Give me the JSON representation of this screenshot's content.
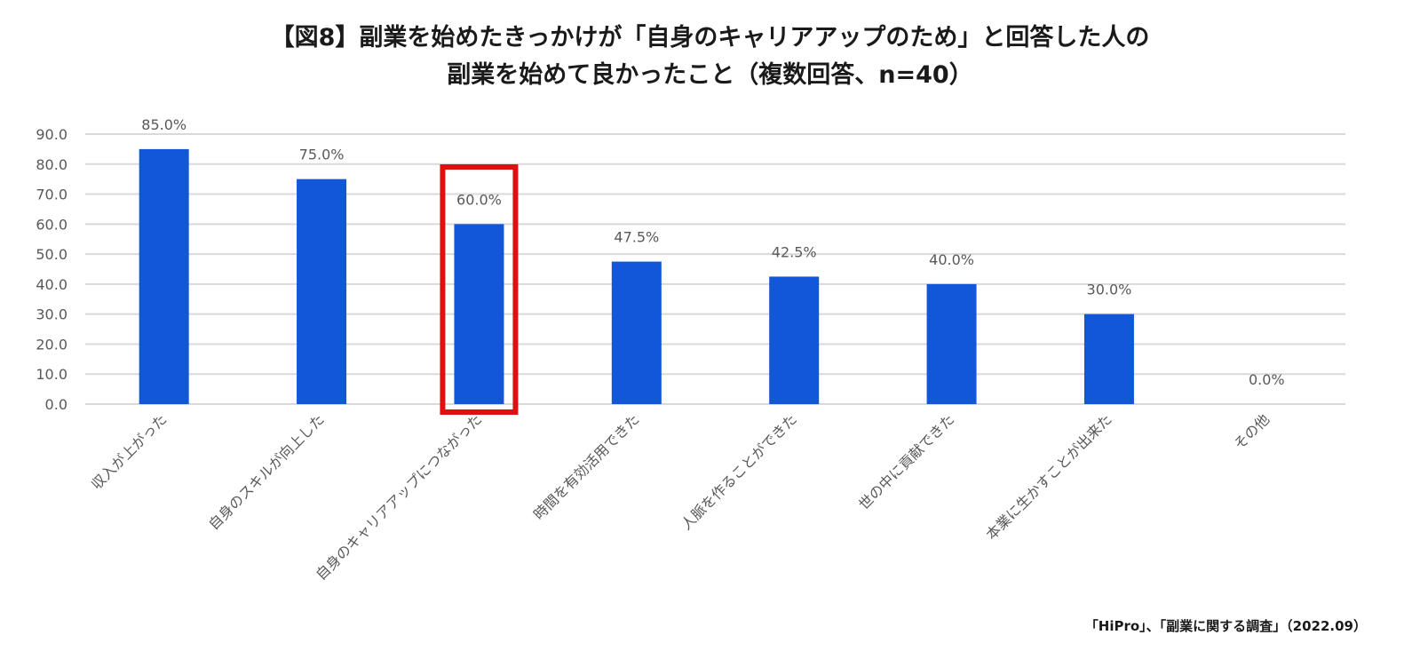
{
  "title": {
    "line1": "【図8】副業を始めたきっかけが「自身のキャリアアップのため」と回答した人の",
    "line2": "副業を始めて良かったこと（複数回答、n=40）"
  },
  "source": "「HiPro」、「副業に関する調査」（2022.09）",
  "colors": {
    "bar": "#1157d8",
    "highlight": "#e01010",
    "grid": "#d9d9d9",
    "text": "#595959"
  },
  "chart_data": {
    "type": "bar",
    "categories": [
      "収入が上がった",
      "自身のスキルが向上した",
      "自身のキャリアアップにつながった",
      "時間を有効活用できた",
      "人脈を作ることができた",
      "世の中に貢献できた",
      "本業に生かすことが出来た",
      "その他"
    ],
    "values": [
      85.0,
      75.0,
      60.0,
      47.5,
      42.5,
      40.0,
      30.0,
      0.0
    ],
    "data_labels": [
      "85.0%",
      "75.0%",
      "60.0%",
      "47.5%",
      "42.5%",
      "40.0%",
      "30.0%",
      "0.0%"
    ],
    "yticks": [
      "0.0",
      "10.0",
      "20.0",
      "30.0",
      "40.0",
      "50.0",
      "60.0",
      "70.0",
      "80.0",
      "90.0"
    ],
    "ylim": [
      0,
      90
    ],
    "grid": true,
    "highlighted_category": "自身のキャリアアップにつながった"
  }
}
